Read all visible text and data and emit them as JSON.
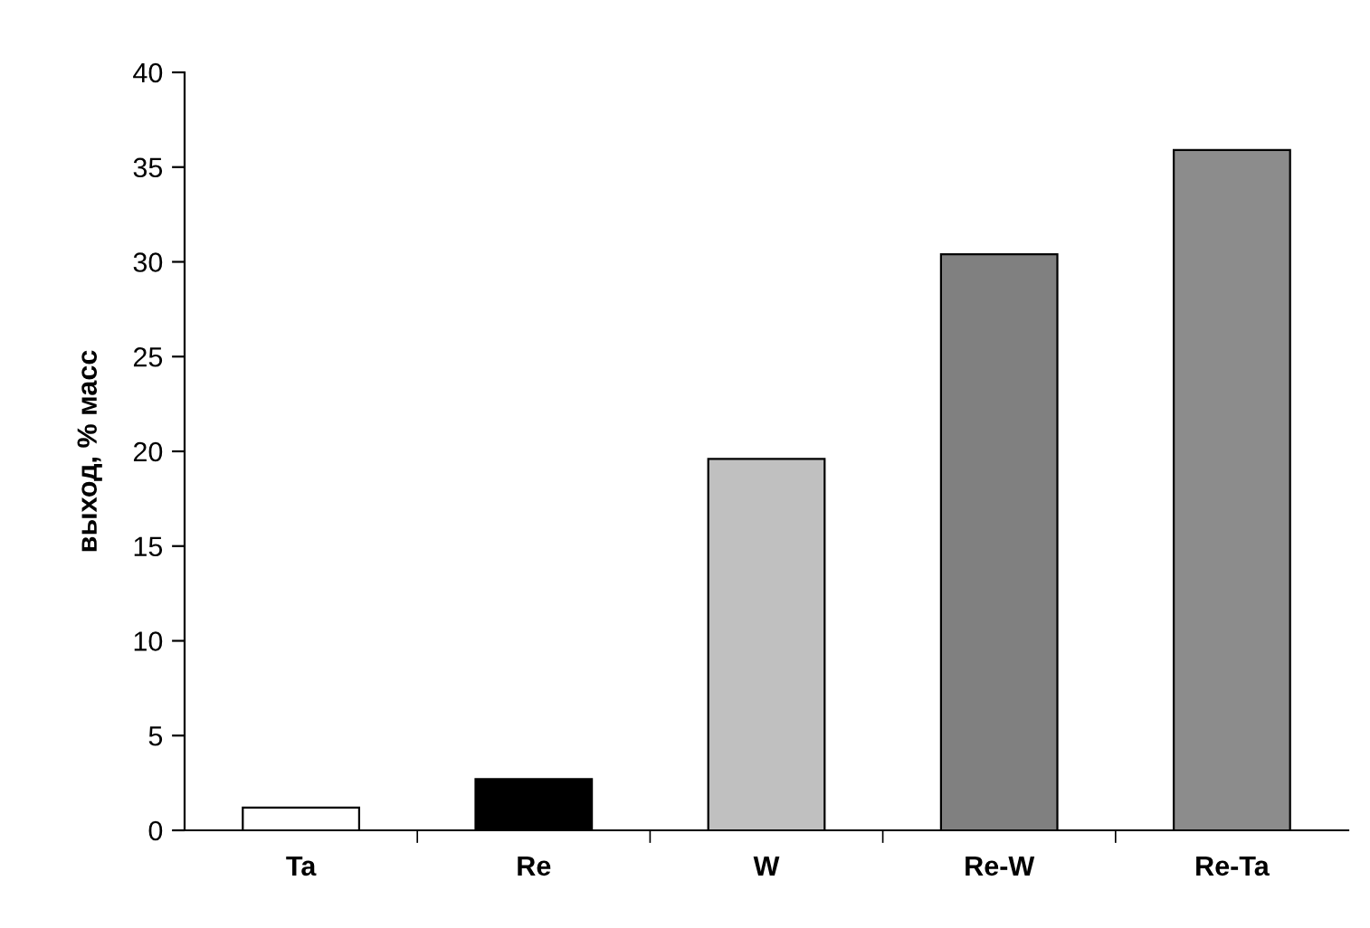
{
  "chart_data": {
    "type": "bar",
    "ylabel": "выход, % масс",
    "categories": [
      "Ta",
      "Re",
      "W",
      "Re-W",
      "Re-Ta"
    ],
    "values": [
      1.2,
      2.7,
      19.6,
      30.4,
      35.9
    ],
    "colors": [
      "#ffffff",
      "#000000",
      "#c0c0c0",
      "#808080",
      "#8c8c8c"
    ],
    "ylim": [
      0,
      40
    ],
    "yticks": [
      0,
      5,
      10,
      15,
      20,
      25,
      30,
      35,
      40
    ],
    "grid": false,
    "legend": false
  }
}
